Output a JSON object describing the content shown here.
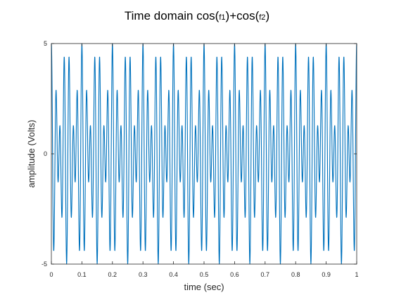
{
  "chart_data": {
    "type": "line",
    "title_parts": {
      "prefix": "Time domain cos(",
      "f1": "f1",
      "middle": ")+cos(",
      "f2": "f2",
      "suffix": ")"
    },
    "xlabel": "time (sec)",
    "ylabel": "amplitude (Volts)",
    "xlim": [
      0,
      1
    ],
    "ylim": [
      -5,
      5
    ],
    "x_ticks": [
      "0",
      "0.1",
      "0.2",
      "0.3",
      "0.4",
      "0.5",
      "0.6",
      "0.7",
      "0.8",
      "0.9",
      "1"
    ],
    "y_ticks": [
      "5",
      "0",
      "-5"
    ],
    "grid": false,
    "series": [
      {
        "color": "#0072bd",
        "components": [
          {
            "amplitude": 3.0,
            "frequency_hz": 70
          },
          {
            "amplitude": 2.0,
            "frequency_hz": 50
          }
        ]
      }
    ]
  }
}
